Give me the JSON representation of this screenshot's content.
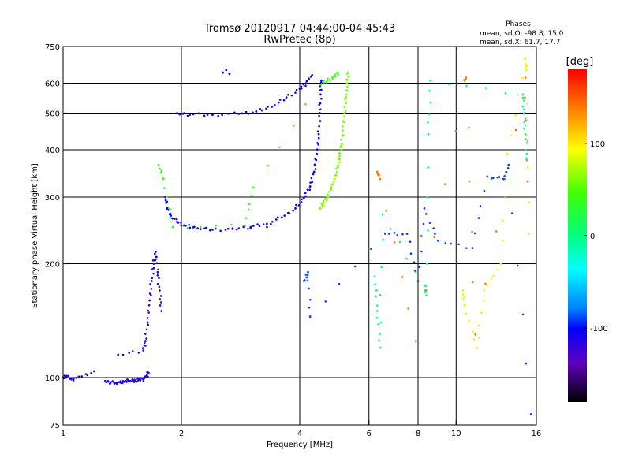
{
  "header": {
    "title": "Tromsø 20120917 04:44:00-04:45:43",
    "subtitle": "RwPretec (8p)"
  },
  "stats": {
    "heading": "Phases",
    "line1": "mean, sd,O: -98.8, 15.0",
    "line2": "mean, sd,X:  61.7, 17.7"
  },
  "colorbar": {
    "label": "[deg]",
    "min": -180,
    "max": 180,
    "ticks": [
      {
        "value": 100,
        "label": "100"
      },
      {
        "value": 0,
        "label": "0"
      },
      {
        "value": -100,
        "label": "-100"
      }
    ]
  },
  "chart_data": {
    "type": "scatter",
    "xlabel": "Frequency [MHz]",
    "ylabel": "Stationary phase Virtual Height [km]",
    "xscale": "log",
    "yscale": "log",
    "xlim": [
      1,
      16
    ],
    "ylim": [
      75,
      750
    ],
    "xticks": [
      {
        "v": 1,
        "t": "1"
      },
      {
        "v": 2,
        "t": "2"
      },
      {
        "v": 4,
        "t": "4"
      },
      {
        "v": 6,
        "t": "6"
      },
      {
        "v": 8,
        "t": "8"
      },
      {
        "v": 10,
        "t": "10"
      },
      {
        "v": 16,
        "t": "16"
      }
    ],
    "yticks": [
      {
        "v": 75,
        "t": "75"
      },
      {
        "v": 100,
        "t": "100"
      },
      {
        "v": 200,
        "t": "200"
      },
      {
        "v": 300,
        "t": "300"
      },
      {
        "v": 400,
        "t": "400"
      },
      {
        "v": 500,
        "t": "500"
      },
      {
        "v": 600,
        "t": "600"
      },
      {
        "v": 750,
        "t": "750"
      }
    ],
    "grid_x": [
      2,
      4,
      6,
      8,
      10
    ],
    "grid_y": [
      100,
      200,
      300,
      400,
      500,
      600
    ],
    "color_by": "phase [deg]",
    "traces": [
      {
        "phase": -110,
        "points": [
          [
            1.0,
            100
          ],
          [
            1.02,
            101
          ],
          [
            1.05,
            99
          ],
          [
            1.1,
            100
          ],
          [
            1.2,
            104
          ]
        ]
      },
      {
        "phase": -112,
        "points": [
          [
            1.28,
            98
          ],
          [
            1.32,
            97
          ],
          [
            1.36,
            97
          ],
          [
            1.4,
            97
          ],
          [
            1.44,
            98
          ],
          [
            1.48,
            98
          ],
          [
            1.52,
            98
          ],
          [
            1.56,
            99
          ],
          [
            1.6,
            99
          ],
          [
            1.63,
            101
          ],
          [
            1.65,
            103
          ]
        ]
      },
      {
        "phase": -115,
        "points": [
          [
            1.38,
            115
          ],
          [
            1.6,
            118
          ],
          [
            1.62,
            125
          ],
          [
            1.64,
            140
          ],
          [
            1.66,
            160
          ],
          [
            1.68,
            180
          ],
          [
            1.7,
            200
          ],
          [
            1.72,
            215
          ],
          [
            1.74,
            190
          ],
          [
            1.76,
            170
          ],
          [
            1.78,
            150
          ]
        ]
      },
      {
        "phase": -105,
        "points": [
          [
            1.82,
            300
          ],
          [
            1.84,
            280
          ],
          [
            1.88,
            268
          ],
          [
            1.95,
            258
          ],
          [
            2.05,
            252
          ],
          [
            2.2,
            248
          ],
          [
            2.4,
            246
          ],
          [
            2.7,
            247
          ],
          [
            3.0,
            250
          ],
          [
            3.3,
            255
          ],
          [
            3.6,
            265
          ],
          [
            3.9,
            280
          ],
          [
            4.1,
            298
          ],
          [
            4.25,
            320
          ],
          [
            4.35,
            350
          ],
          [
            4.42,
            390
          ],
          [
            4.47,
            440
          ],
          [
            4.5,
            500
          ],
          [
            4.52,
            560
          ],
          [
            4.54,
            610
          ]
        ]
      },
      {
        "phase": -108,
        "points": [
          [
            1.95,
            500
          ],
          [
            2.1,
            495
          ],
          [
            2.4,
            495
          ],
          [
            2.8,
            498
          ],
          [
            3.1,
            505
          ],
          [
            3.4,
            520
          ],
          [
            3.7,
            550
          ],
          [
            4.0,
            580
          ],
          [
            4.15,
            600
          ],
          [
            4.3,
            630
          ]
        ]
      },
      {
        "phase": -100,
        "points": [
          [
            2.55,
            640
          ],
          [
            2.6,
            650
          ],
          [
            2.65,
            635
          ]
        ]
      },
      {
        "phase": -125,
        "points": [
          [
            2.7,
            248
          ],
          [
            3.0,
            248
          ],
          [
            3.3,
            250
          ]
        ]
      },
      {
        "phase": 62,
        "points": [
          [
            4.5,
            280
          ],
          [
            4.6,
            290
          ],
          [
            4.7,
            300
          ],
          [
            4.8,
            315
          ],
          [
            4.9,
            335
          ],
          [
            5.0,
            360
          ],
          [
            5.05,
            385
          ],
          [
            5.1,
            410
          ],
          [
            5.15,
            450
          ],
          [
            5.2,
            500
          ],
          [
            5.25,
            550
          ],
          [
            5.28,
            600
          ],
          [
            5.3,
            640
          ]
        ]
      },
      {
        "phase": -5,
        "points": [
          [
            6.2,
            185
          ],
          [
            6.3,
            150
          ],
          [
            6.4,
            120
          ],
          [
            6.5,
            270
          ],
          [
            8.3,
            175
          ],
          [
            8.4,
            165
          ],
          [
            8.5,
            440
          ],
          [
            8.6,
            610
          ],
          [
            14.8,
            560
          ],
          [
            14.9,
            500
          ],
          [
            15.0,
            440
          ],
          [
            15.1,
            380
          ]
        ]
      },
      {
        "phase": 140,
        "points": [
          [
            6.3,
            350
          ],
          [
            6.4,
            335
          ],
          [
            7.9,
            125
          ],
          [
            10.5,
            610
          ],
          [
            10.6,
            620
          ],
          [
            11.2,
            130
          ],
          [
            15.0,
            620
          ],
          [
            15.2,
            330
          ]
        ]
      },
      {
        "phase": 100,
        "points": [
          [
            10.4,
            170
          ],
          [
            10.5,
            155
          ],
          [
            11.3,
            120
          ],
          [
            11.8,
            170
          ],
          [
            13.0,
            200
          ],
          [
            13.5,
            390
          ],
          [
            15.0,
            700
          ],
          [
            15.1,
            650
          ],
          [
            15.3,
            240
          ]
        ]
      },
      {
        "phase": 40,
        "points": [
          [
            1.75,
            365
          ],
          [
            1.8,
            335
          ],
          [
            1.9,
            250
          ],
          [
            2.9,
            252
          ],
          [
            3.05,
            318
          ],
          [
            4.5,
            595
          ],
          [
            4.7,
            610
          ],
          [
            4.9,
            625
          ],
          [
            5.0,
            640
          ]
        ]
      },
      {
        "phase": -90,
        "points": [
          [
            4.1,
            180
          ],
          [
            4.2,
            190
          ],
          [
            4.25,
            145
          ],
          [
            6.6,
            240
          ],
          [
            7.5,
            240
          ],
          [
            8.0,
            180
          ],
          [
            8.3,
            280
          ],
          [
            9.0,
            230
          ],
          [
            11.0,
            220
          ],
          [
            12.0,
            340
          ],
          [
            13.2,
            335
          ],
          [
            13.6,
            365
          ],
          [
            15.5,
            80
          ]
        ]
      }
    ]
  }
}
